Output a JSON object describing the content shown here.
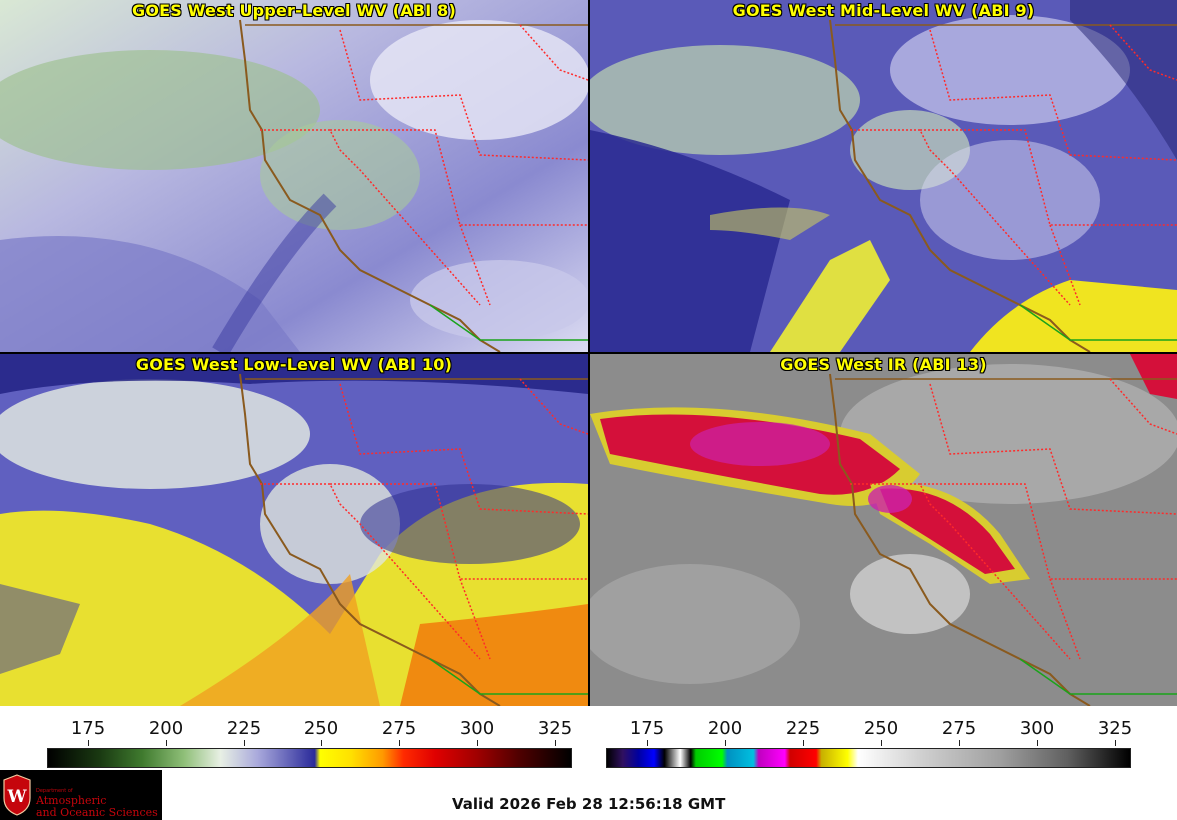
{
  "panels": [
    {
      "title": "GOES West Upper-Level WV (ABI 8)"
    },
    {
      "title": "GOES West Mid-Level WV (ABI 9)"
    },
    {
      "title": "GOES West Low-Level WV (ABI 10)"
    },
    {
      "title": "GOES West IR (ABI 13)"
    }
  ],
  "colorbars": [
    {
      "ticks": [
        "175",
        "200",
        "225",
        "250",
        "275",
        "300",
        "325"
      ]
    },
    {
      "ticks": [
        "175",
        "200",
        "225",
        "250",
        "275",
        "300",
        "325"
      ]
    }
  ],
  "logo": {
    "small": "Department of",
    "line1": "Atmospheric",
    "line2": "and Oceanic Sciences"
  },
  "valid_time": "Valid 2026 Feb 28 12:56:18 GMT",
  "colors": {
    "title_text": "#ffff00",
    "coast": "#8a5a1e",
    "state_border": "#ff2a2a",
    "mexico_border": "#1aa31a"
  }
}
